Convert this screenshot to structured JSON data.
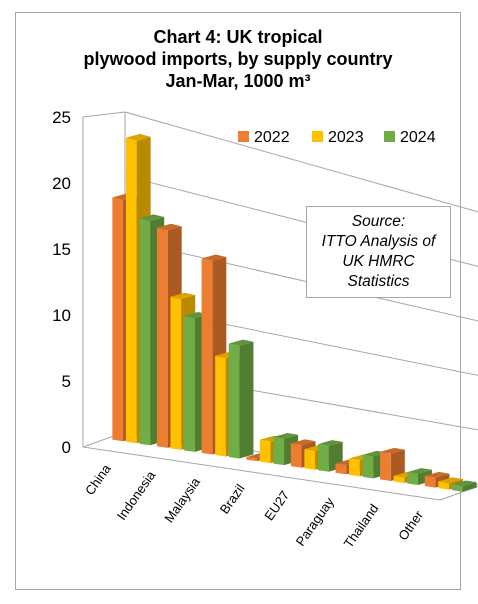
{
  "chart_data": {
    "type": "bar",
    "title_lines": [
      "Chart 4: UK tropical",
      "plywood imports, by supply country",
      "Jan-Mar, 1000 m³"
    ],
    "categories": [
      "China",
      "Indonesia",
      "Malaysia",
      "Brazil",
      "EU27",
      "Paraguay",
      "Thailand",
      "Other"
    ],
    "series": [
      {
        "name": "2022",
        "color": "#ED7D31",
        "values": [
          18.7,
          17.2,
          15.6,
          0.2,
          1.9,
          0.8,
          2.4,
          0.9
        ]
      },
      {
        "name": "2023",
        "color": "#FFC000",
        "values": [
          23.6,
          12.0,
          8.0,
          1.8,
          1.6,
          1.4,
          0.5,
          0.6
        ]
      },
      {
        "name": "2024",
        "color": "#70AD47",
        "values": [
          17.6,
          10.7,
          9.2,
          2.2,
          2.2,
          1.9,
          1.0,
          0.5
        ]
      }
    ],
    "yticks": [
      0,
      5,
      10,
      15,
      20,
      25
    ],
    "ylim": [
      0,
      25
    ],
    "grid": true,
    "legend": "top-right",
    "annotation_lines": [
      "Source:",
      "ITTO Analysis of",
      "UK HMRC",
      "Statistics"
    ]
  }
}
